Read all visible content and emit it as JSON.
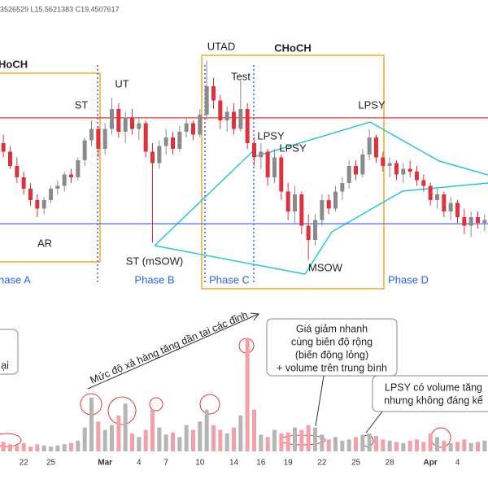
{
  "chart_data": {
    "type": "candlestick",
    "header": "3526529  L15.5621383  C19.4507617",
    "categories": [
      null,
      null,
      null,
      "22",
      null,
      null,
      null,
      "25",
      null,
      null,
      null,
      null,
      null,
      null,
      null,
      "Mar",
      null,
      null,
      null,
      null,
      "4",
      null,
      null,
      null,
      "7",
      null,
      null,
      null,
      null,
      "10",
      null,
      null,
      null,
      null,
      "14",
      null,
      null,
      null,
      "16",
      null,
      null,
      null,
      "19",
      null,
      null,
      null,
      null,
      "22",
      null,
      null,
      null,
      null,
      "25",
      null,
      null,
      null,
      null,
      "28",
      null,
      null,
      null,
      null,
      null,
      "Apr",
      null,
      null,
      null,
      "4",
      null,
      null,
      null,
      null
    ],
    "open": [
      18.4,
      18.1,
      17.6,
      17.2,
      16.8,
      16.4,
      16.1,
      16.4,
      16.8,
      16.9,
      17.3,
      17.2,
      17.8,
      18.5,
      18.9,
      18.2,
      18.9,
      19.6,
      18.8,
      19.3,
      18.9,
      19.1,
      18.1,
      17.7,
      18.3,
      18.6,
      18.2,
      18.8,
      19.1,
      18.7,
      19.4,
      20.4,
      19.9,
      19.2,
      19.5,
      18.9,
      19.6,
      18.4,
      17.9,
      18.1,
      17.2,
      17.9,
      16.7,
      16.0,
      16.6,
      15.5,
      15.0,
      15.7,
      16.4,
      16.1,
      16.7,
      17.0,
      17.6,
      17.3,
      18.0,
      18.6,
      17.9,
      17.6,
      17.7,
      17.3,
      17.5,
      17.4,
      17.1,
      16.9,
      16.4,
      16.6,
      16.0,
      16.3,
      15.8,
      15.5,
      15.8,
      15.6
    ],
    "high": [
      18.7,
      18.3,
      17.9,
      17.4,
      17.0,
      16.6,
      16.5,
      16.9,
      17.1,
      17.4,
      17.5,
      17.9,
      18.6,
      19.2,
      19.0,
      19.1,
      20.0,
      19.8,
      19.5,
      19.6,
      19.3,
      19.2,
      18.4,
      18.5,
      18.9,
      18.8,
      19.0,
      19.3,
      19.2,
      19.6,
      21.3,
      20.7,
      20.1,
      19.7,
      19.8,
      20.6,
      19.8,
      18.6,
      18.4,
      18.2,
      18.2,
      18.0,
      17.0,
      16.9,
      16.7,
      15.9,
      15.9,
      16.6,
      16.6,
      16.9,
      17.2,
      17.8,
      17.8,
      18.2,
      18.9,
      18.7,
      18.1,
      17.9,
      17.8,
      17.7,
      17.8,
      17.6,
      17.3,
      17.0,
      16.8,
      16.7,
      16.5,
      16.4,
      16.1,
      16.0,
      16.0,
      15.9
    ],
    "low": [
      17.9,
      17.5,
      17.0,
      16.6,
      16.2,
      15.8,
      15.9,
      16.3,
      16.6,
      16.7,
      17.0,
      17.1,
      17.6,
      18.3,
      17.9,
      18.0,
      18.7,
      18.6,
      18.4,
      18.7,
      18.5,
      17.9,
      14.9,
      17.5,
      18.0,
      18.0,
      18.1,
      18.6,
      18.5,
      18.6,
      19.2,
      19.6,
      18.9,
      18.8,
      18.7,
      18.8,
      18.2,
      17.6,
      17.5,
      16.9,
      17.0,
      16.4,
      15.7,
      15.6,
      15.2,
      14.3,
      14.8,
      15.5,
      15.9,
      16.0,
      16.4,
      16.8,
      17.1,
      17.2,
      17.8,
      17.7,
      17.4,
      17.2,
      17.1,
      17.0,
      17.2,
      16.9,
      16.7,
      16.2,
      16.1,
      15.8,
      15.7,
      15.6,
      15.2,
      15.1,
      15.4,
      15.3
    ],
    "close": [
      18.1,
      17.6,
      17.2,
      16.8,
      16.4,
      16.1,
      16.4,
      16.8,
      16.9,
      17.3,
      17.2,
      17.8,
      18.5,
      18.9,
      18.2,
      18.9,
      19.6,
      18.8,
      19.3,
      18.9,
      19.1,
      18.1,
      17.7,
      18.3,
      18.6,
      18.2,
      18.8,
      19.1,
      18.7,
      19.4,
      20.4,
      19.9,
      19.2,
      19.5,
      18.9,
      19.6,
      18.4,
      17.9,
      18.1,
      17.2,
      17.9,
      16.7,
      16.0,
      16.6,
      15.5,
      15.0,
      15.7,
      16.4,
      16.1,
      16.7,
      17.0,
      17.6,
      17.3,
      18.0,
      18.6,
      17.9,
      17.6,
      17.7,
      17.3,
      17.5,
      17.4,
      17.1,
      16.9,
      16.4,
      16.6,
      16.0,
      16.3,
      15.8,
      15.5,
      15.8,
      15.6,
      15.7
    ],
    "volume": [
      8,
      6,
      5,
      7,
      4,
      6,
      5,
      4,
      5,
      6,
      7,
      9,
      20,
      45,
      25,
      18,
      22,
      30,
      40,
      15,
      12,
      18,
      35,
      20,
      14,
      16,
      12,
      22,
      18,
      25,
      35,
      22,
      18,
      15,
      20,
      30,
      95,
      35,
      14,
      12,
      18,
      15,
      16,
      20,
      18,
      22,
      20,
      14,
      10,
      12,
      9,
      10,
      12,
      14,
      15,
      13,
      10,
      9,
      8,
      7,
      9,
      10,
      8,
      15,
      12,
      9,
      7,
      8,
      10,
      7,
      8,
      9
    ],
    "up_color": "#8a8a8a",
    "down_color": "#e0303c",
    "volume_up_color": "#b5b5b5",
    "volume_down_color": "#f4a0a8",
    "ylim": [
      14,
      22
    ],
    "volume_lim": [
      0,
      100
    ],
    "levels": [
      {
        "value": 19.29,
        "color": "#e53935"
      },
      {
        "value": 15.57,
        "color": "#2962ff"
      }
    ],
    "annotations": [
      "HoCH",
      "CHoCH",
      "UTAD",
      "Test",
      "UT",
      "ST",
      "AR",
      "ST (mSOW)",
      "LPSY",
      "LPSY",
      "LPSY",
      "MSOW"
    ],
    "phases": [
      "hase A",
      "Phase B",
      "Phase C",
      "Phase D"
    ],
    "volume_trend_label": "Mức độ xả hàng tăng dần tại các đỉnh",
    "notes": [
      {
        "lines": [
          "ại"
        ]
      },
      {
        "lines": [
          "Giá giảm nhanh",
          "cùng biên độ rộng",
          "(biến động lỏng)",
          "+ volume trên trung bình"
        ]
      },
      {
        "lines": [
          "LPSY có volume tăng",
          "nhưng không đáng kể"
        ]
      }
    ]
  }
}
